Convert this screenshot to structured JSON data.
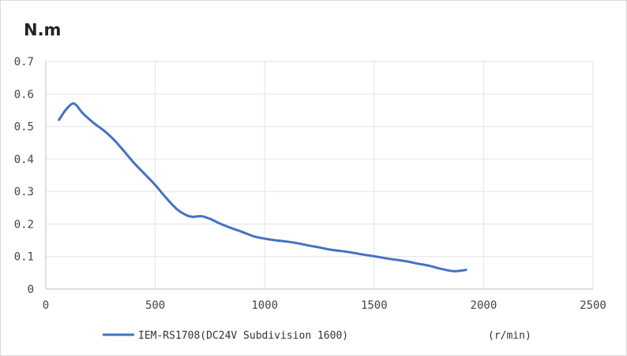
{
  "chart_data": {
    "type": "line",
    "ylabel": "N.m",
    "xunit": "(r/min)",
    "xlim": [
      0,
      2500
    ],
    "ylim": [
      0,
      0.7
    ],
    "xticks": [
      "0",
      "500",
      "1000",
      "1500",
      "2000",
      "2500"
    ],
    "yticks": [
      "0",
      "0.1",
      "0.2",
      "0.3",
      "0.4",
      "0.5",
      "0.6",
      "0.7"
    ],
    "grid": true,
    "legend_position": "bottom-left",
    "series": [
      {
        "name": "IEM-RS1708(DC24V Subdivision 1600)",
        "color": "#4472c4",
        "x": [
          60,
          90,
          120,
          140,
          170,
          220,
          270,
          310,
          350,
          400,
          450,
          500,
          550,
          600,
          640,
          670,
          710,
          750,
          800,
          850,
          900,
          950,
          1000,
          1050,
          1100,
          1150,
          1200,
          1250,
          1300,
          1350,
          1400,
          1450,
          1500,
          1550,
          1600,
          1650,
          1700,
          1750,
          1800,
          1860,
          1900,
          1920
        ],
        "y": [
          0.52,
          0.55,
          0.57,
          0.565,
          0.54,
          0.51,
          0.485,
          0.46,
          0.43,
          0.39,
          0.355,
          0.32,
          0.28,
          0.245,
          0.228,
          0.222,
          0.224,
          0.216,
          0.2,
          0.187,
          0.175,
          0.162,
          0.155,
          0.15,
          0.146,
          0.141,
          0.134,
          0.128,
          0.121,
          0.117,
          0.112,
          0.106,
          0.101,
          0.095,
          0.09,
          0.085,
          0.078,
          0.072,
          0.063,
          0.055,
          0.057,
          0.059
        ]
      }
    ]
  }
}
